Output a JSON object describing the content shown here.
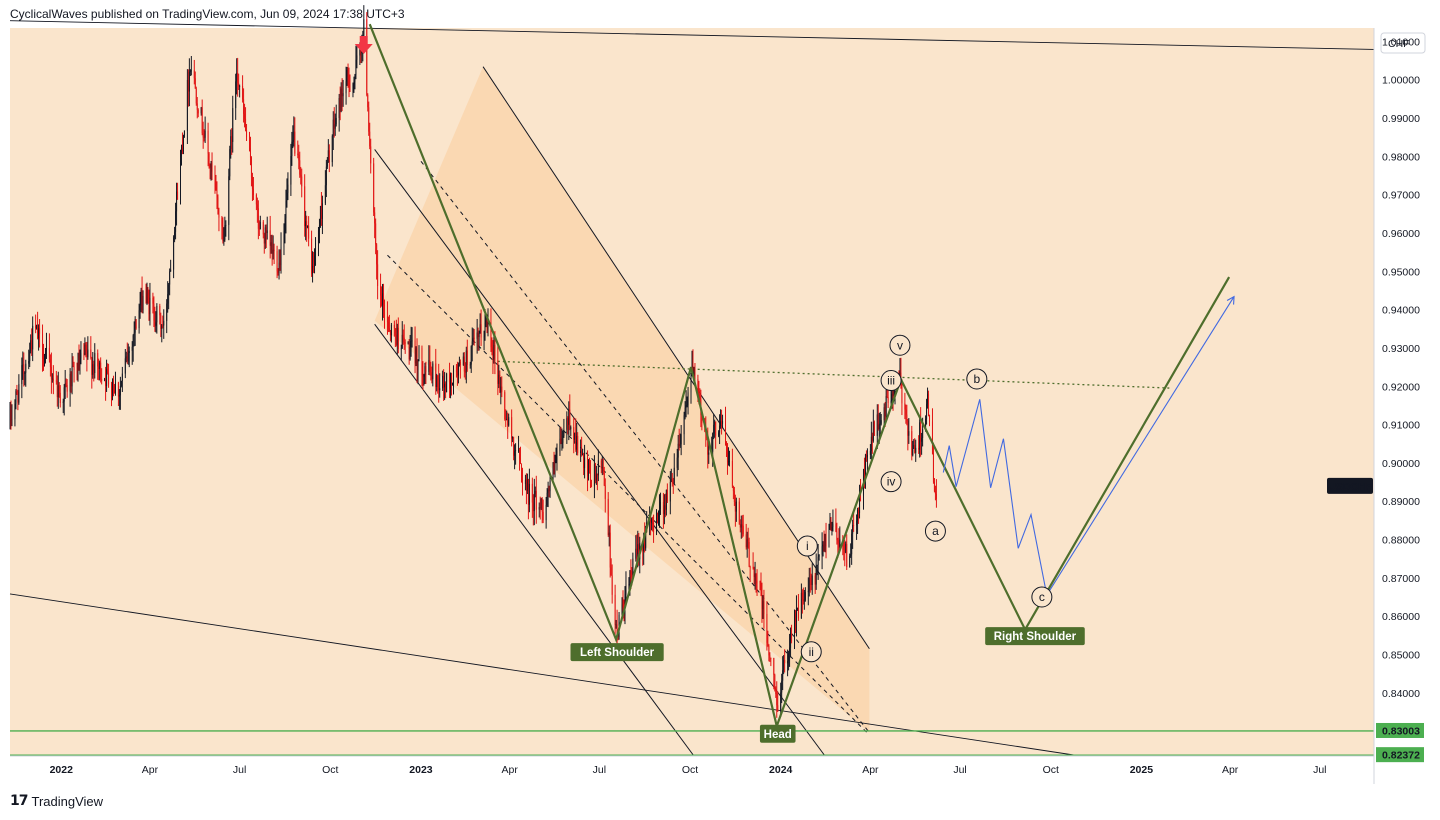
{
  "header": {
    "publisher_line": "CyclicalWaves published on TradingView.com, Jun 09, 2024 17:38 UTC+3"
  },
  "footer": {
    "brand": "TradingView",
    "logo_glyph": "17"
  },
  "colors": {
    "background": "#fae5cc",
    "channel_fill": "#f9d6ad",
    "green_path": "#4e6e2c",
    "blue_path": "#4169e1",
    "candle_up": "#131722",
    "candle_down": "#e11414",
    "support_line": "#4caf50",
    "arrow": "#f23645"
  },
  "chart_data": {
    "type": "candlestick",
    "symbol": "USDCHF",
    "currency": "CHF",
    "ylim": [
      0.8235,
      1.0135
    ],
    "y_ticks": [
      1.01,
      1.0,
      0.99,
      0.98,
      0.97,
      0.96,
      0.95,
      0.94,
      0.93,
      0.92,
      0.91,
      0.9,
      0.89,
      0.88,
      0.87,
      0.86,
      0.85,
      0.84
    ],
    "y_tick_labels": [
      "1.01000",
      "1.00000",
      "0.99000",
      "0.98000",
      "0.97000",
      "0.96000",
      "0.95000",
      "0.94000",
      "0.93000",
      "0.92000",
      "0.91000",
      "0.90000",
      "0.89000",
      "0.88000",
      "0.87000",
      "0.86000",
      "0.85000",
      "0.84000"
    ],
    "x_range": [
      "2021-11-10",
      "2025-08-25"
    ],
    "x_ticks": [
      {
        "label": "2022",
        "date": "2022-01-01"
      },
      {
        "label": "Apr",
        "date": "2022-04-01"
      },
      {
        "label": "Jul",
        "date": "2022-07-01"
      },
      {
        "label": "Oct",
        "date": "2022-10-01"
      },
      {
        "label": "2023",
        "date": "2023-01-01"
      },
      {
        "label": "Apr",
        "date": "2023-04-01"
      },
      {
        "label": "Jul",
        "date": "2023-07-01"
      },
      {
        "label": "Oct",
        "date": "2023-10-01"
      },
      {
        "label": "2024",
        "date": "2024-01-01"
      },
      {
        "label": "Apr",
        "date": "2024-04-01"
      },
      {
        "label": "Jul",
        "date": "2024-07-01"
      },
      {
        "label": "Oct",
        "date": "2024-10-01"
      },
      {
        "label": "2025",
        "date": "2025-01-01"
      },
      {
        "label": "Apr",
        "date": "2025-04-01"
      },
      {
        "label": "Jul",
        "date": "2025-07-01"
      }
    ],
    "price_path": [
      [
        "2021-11-10",
        0.911
      ],
      [
        "2021-12-05",
        0.935
      ],
      [
        "2022-01-01",
        0.917
      ],
      [
        "2022-01-25",
        0.928
      ],
      [
        "2022-03-01",
        0.919
      ],
      [
        "2022-03-25",
        0.944
      ],
      [
        "2022-04-15",
        0.935
      ],
      [
        "2022-05-12",
        1.005
      ],
      [
        "2022-06-15",
        0.958
      ],
      [
        "2022-06-28",
        1.004
      ],
      [
        "2022-07-20",
        0.962
      ],
      [
        "2022-08-10",
        0.952
      ],
      [
        "2022-08-25",
        0.985
      ],
      [
        "2022-09-13",
        0.95
      ],
      [
        "2022-10-01",
        0.983
      ],
      [
        "2022-10-15",
        0.999
      ],
      [
        "2022-10-25",
        1.0
      ],
      [
        "2022-11-04",
        1.013
      ],
      [
        "2022-11-18",
        0.945
      ],
      [
        "2022-12-01",
        0.935
      ],
      [
        "2023-01-05",
        0.925
      ],
      [
        "2023-01-25",
        0.92
      ],
      [
        "2023-02-15",
        0.926
      ],
      [
        "2023-03-10",
        0.937
      ],
      [
        "2023-03-28",
        0.912
      ],
      [
        "2023-04-20",
        0.892
      ],
      [
        "2023-05-05",
        0.888
      ],
      [
        "2023-05-31",
        0.912
      ],
      [
        "2023-06-20",
        0.895
      ],
      [
        "2023-07-05",
        0.899
      ],
      [
        "2023-07-18",
        0.855
      ],
      [
        "2023-08-10",
        0.878
      ],
      [
        "2023-09-10",
        0.892
      ],
      [
        "2023-10-03",
        0.924
      ],
      [
        "2023-10-20",
        0.904
      ],
      [
        "2023-11-01",
        0.912
      ],
      [
        "2023-11-21",
        0.883
      ],
      [
        "2023-12-10",
        0.868
      ],
      [
        "2023-12-28",
        0.837
      ],
      [
        "2024-01-15",
        0.86
      ],
      [
        "2024-02-05",
        0.87
      ],
      [
        "2024-02-20",
        0.885
      ],
      [
        "2024-03-10",
        0.875
      ],
      [
        "2024-04-01",
        0.906
      ],
      [
        "2024-04-30",
        0.922
      ],
      [
        "2024-05-15",
        0.902
      ],
      [
        "2024-05-29",
        0.915
      ],
      [
        "2024-06-07",
        0.889
      ]
    ],
    "annotations": {
      "wave_labels": [
        {
          "text": "v",
          "date": "2024-05-01",
          "price": 0.9307
        },
        {
          "text": "iii",
          "date": "2024-04-22",
          "price": 0.9215
        },
        {
          "text": "iv",
          "date": "2024-04-22",
          "price": 0.8951
        },
        {
          "text": "i",
          "date": "2024-01-28",
          "price": 0.8783
        },
        {
          "text": "ii",
          "date": "2024-02-01",
          "price": 0.8507
        },
        {
          "text": "a",
          "date": "2024-06-06",
          "price": 0.8822
        },
        {
          "text": "b",
          "date": "2024-07-18",
          "price": 0.9219
        },
        {
          "text": "c",
          "date": "2024-09-22",
          "price": 0.865
        }
      ],
      "pattern_tags": [
        {
          "text": "Left Shoulder",
          "date": "2023-07-19",
          "price": 0.8506
        },
        {
          "text": "Head",
          "date": "2023-12-29",
          "price": 0.8293
        },
        {
          "text": "Right Shoulder",
          "date": "2024-09-15",
          "price": 0.8548
        }
      ],
      "horizontal_levels": [
        {
          "label": "0.83003",
          "price": 0.83003
        },
        {
          "label": "0.82372",
          "price": 0.82372
        }
      ],
      "price_tag": "USDCHF",
      "green_projection": [
        [
          "2022-11-10",
          1.0145
        ],
        [
          "2023-07-18",
          0.8539
        ],
        [
          "2023-10-02",
          0.925
        ],
        [
          "2023-12-28",
          0.8313
        ],
        [
          "2024-05-02",
          0.9218
        ],
        [
          "2024-09-05",
          0.8565
        ],
        [
          "2025-03-31",
          0.9485
        ]
      ],
      "blue_projection": [
        [
          "2024-06-14",
          0.8975
        ],
        [
          "2024-06-20",
          0.9045
        ],
        [
          "2024-06-27",
          0.8938
        ],
        [
          "2024-07-21",
          0.9166
        ],
        [
          "2024-08-01",
          0.8935
        ],
        [
          "2024-08-14",
          0.9063
        ],
        [
          "2024-08-29",
          0.8777
        ],
        [
          "2024-09-11",
          0.8865
        ],
        [
          "2024-09-27",
          0.8655
        ],
        [
          "2025-04-05",
          0.9434
        ]
      ],
      "neckline": {
        "from": [
          "2023-03-20",
          0.9265
        ],
        "to": [
          "2025-02-01",
          0.9195
        ]
      },
      "top_resistance": {
        "from": [
          "2021-11-10",
          1.0154
        ],
        "to": [
          "2025-08-25",
          1.0079
        ]
      },
      "bottom_support": {
        "from": [
          "2021-11-10",
          0.8658
        ],
        "to": [
          "2024-10-31",
          0.8235
        ]
      },
      "channel": {
        "upper": {
          "from": [
            "2023-03-05",
            1.0034
          ],
          "to": [
            "2024-03-31",
            0.8515
          ]
        },
        "lower": {
          "from": [
            "2022-11-15",
            0.9371
          ],
          "to": [
            "2024-03-31",
            0.8296
          ]
        },
        "mid_dashed_a": {
          "from": [
            "2023-01-01",
            0.9787
          ],
          "to": [
            "2024-03-31",
            0.8296
          ]
        },
        "mid_dashed_b": {
          "from": [
            "2022-11-28",
            0.9542
          ],
          "to": [
            "2024-03-29",
            0.8295
          ]
        },
        "inner_solid_a": {
          "from": [
            "2022-11-15",
            0.9818
          ],
          "to": [
            "2024-02-15",
            0.8235
          ]
        },
        "inner_solid_b": {
          "from": [
            "2022-11-15",
            0.9362
          ],
          "to": [
            "2023-10-05",
            0.8235
          ]
        }
      }
    }
  }
}
